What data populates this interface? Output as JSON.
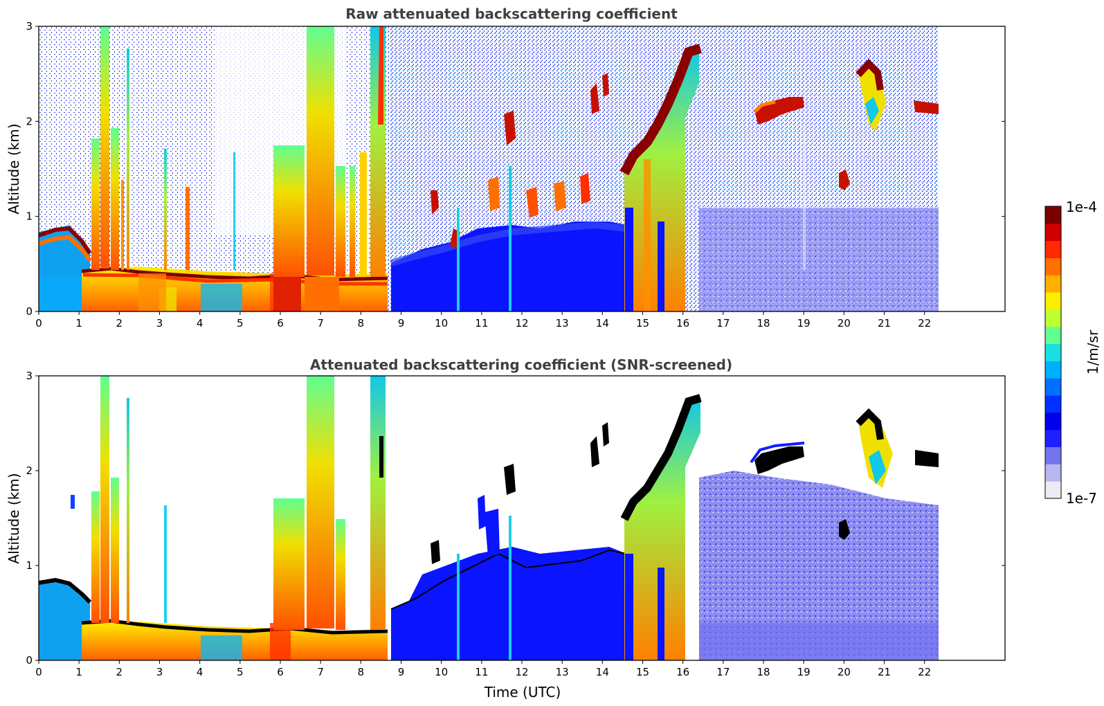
{
  "chart_data": [
    {
      "type": "heatmap",
      "title": "Raw attenuated backscattering coefficient",
      "xlabel": "",
      "ylabel": "Altitude (km)",
      "xlim": [
        0,
        24
      ],
      "ylim": [
        0,
        3
      ],
      "x_ticks": [
        "0",
        "1",
        "2",
        "3",
        "4",
        "5",
        "6",
        "7",
        "8",
        "9",
        "10",
        "11",
        "12",
        "13",
        "14",
        "15",
        "16",
        "17",
        "18",
        "19",
        "20",
        "21",
        "22"
      ],
      "y_ticks": [
        "0",
        "1",
        "2",
        "3"
      ],
      "data_end_hour": 22.2,
      "features": [
        {
          "name": "boundary layer top",
          "hours": [
            0,
            1.3,
            3,
            5,
            8.6
          ],
          "altitude_km": [
            0.85,
            0.65,
            0.35,
            0.28,
            0.3
          ]
        },
        {
          "name": "convective plumes",
          "hours": [
            1.6,
            1.75,
            2.25,
            6.8,
            7.0,
            7.2,
            8.5
          ],
          "top_km": [
            3.0,
            3.0,
            2.7,
            3.0,
            3.0,
            3.0,
            3.0
          ]
        },
        {
          "name": "rising cloud layer",
          "hours": [
            14.6,
            16.3
          ],
          "altitude_km": [
            1.5,
            2.75
          ]
        },
        {
          "name": "cloud patches",
          "hours": [
            18.3,
            19.9,
            20.7,
            21.9
          ],
          "altitude_km": [
            2.15,
            1.4,
            2.4,
            2.1
          ]
        }
      ]
    },
    {
      "type": "heatmap",
      "title": "Attenuated backscattering coefficient (SNR-screened)",
      "xlabel": "Time (UTC)",
      "ylabel": "Altitude (km)",
      "xlim": [
        0,
        24
      ],
      "ylim": [
        0,
        3
      ],
      "x_ticks": [
        "0",
        "1",
        "2",
        "3",
        "4",
        "5",
        "6",
        "7",
        "8",
        "9",
        "10",
        "11",
        "12",
        "13",
        "14",
        "15",
        "16",
        "17",
        "18",
        "19",
        "20",
        "21",
        "22"
      ],
      "y_ticks": [
        "0",
        "1",
        "2",
        "3"
      ],
      "data_end_hour": 22.2
    }
  ],
  "colorbar": {
    "label": "1/m/sr",
    "min_label": "1e-7",
    "max_label": "1e-4",
    "scale": "log",
    "colors": [
      "#ececf6",
      "#b8b8ef",
      "#7474f0",
      "#2020ff",
      "#0000ee",
      "#0030ff",
      "#0070ff",
      "#00b0ff",
      "#18e0e0",
      "#60ff90",
      "#c0ff30",
      "#ffee00",
      "#ffb000",
      "#ff7000",
      "#ff2800",
      "#d00000",
      "#7a0000"
    ]
  },
  "palette": {
    "background": "#ffffff",
    "noise_blue": "#2a36f0",
    "blue": "#0a14ff",
    "lightblue": "#8080ef",
    "cyan": "#10c8e8",
    "yellow": "#f0e000",
    "orange": "#ff9000",
    "red": "#f03000",
    "darkred": "#8a0000",
    "black": "#000000"
  }
}
